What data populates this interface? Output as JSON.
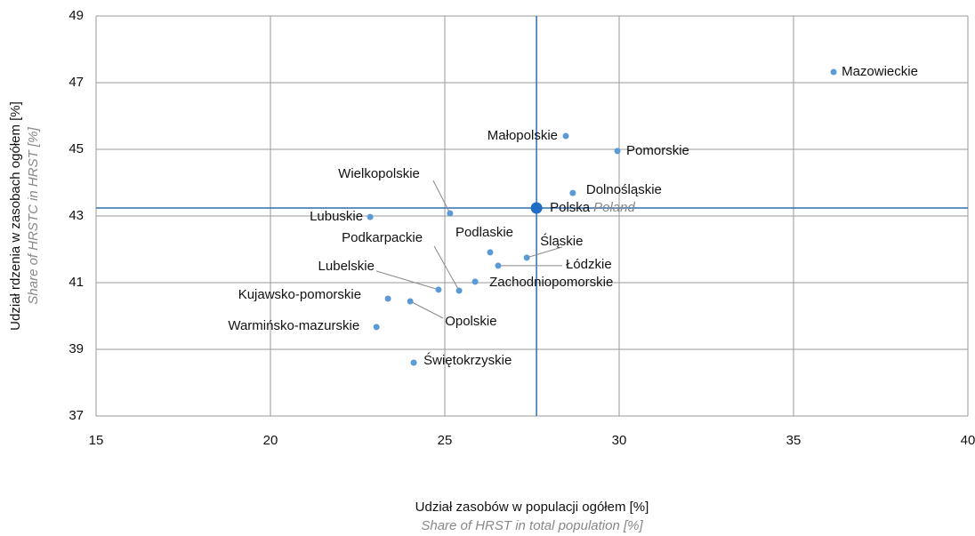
{
  "chart_data": {
    "type": "scatter",
    "labels": [
      "Mazowieckie",
      "Małopolskie",
      "Pomorskie",
      "Dolnośląskie",
      "Wielkopolskie",
      "Lubuskie",
      "Podlaskie",
      "Śląskie",
      "Łódzkie",
      "Zachodniopomorskie",
      "Lubelskie",
      "Podkarpackie",
      "Kujawsko-pomorskie",
      "Opolskie",
      "Warmińsko-mazurskie",
      "Świętokrzyskie"
    ],
    "x": [
      36.15,
      28.47,
      29.95,
      28.67,
      25.15,
      22.86,
      26.3,
      27.35,
      26.53,
      25.87,
      24.82,
      25.41,
      23.37,
      24.01,
      23.04,
      24.11
    ],
    "values": [
      47.32,
      45.4,
      44.95,
      43.69,
      43.08,
      42.97,
      41.91,
      41.75,
      41.51,
      41.03,
      40.79,
      40.76,
      40.52,
      40.44,
      39.67,
      38.6
    ],
    "color": "#5b9bd5",
    "reference": {
      "label": "Polska",
      "label_en": "Poland",
      "x": 27.63,
      "y": 43.24,
      "color": "#1f6fc5",
      "line_color": "#2e6db4"
    },
    "x_label": "Udział zasobów w populacji ogółem [%]",
    "x_label_en": "Share of HRST in total population [%]",
    "y_label": "Udział rdzenia w zasobach ogółem [%]",
    "y_label_en": "Share of HRSTC in HRST [%]",
    "xlim": [
      15,
      40
    ],
    "xticks": [
      15,
      20,
      25,
      30,
      35,
      40
    ],
    "ylim": [
      37,
      49
    ],
    "yticks": [
      37,
      39,
      41,
      43,
      45,
      47,
      49
    ],
    "grid": true
  }
}
